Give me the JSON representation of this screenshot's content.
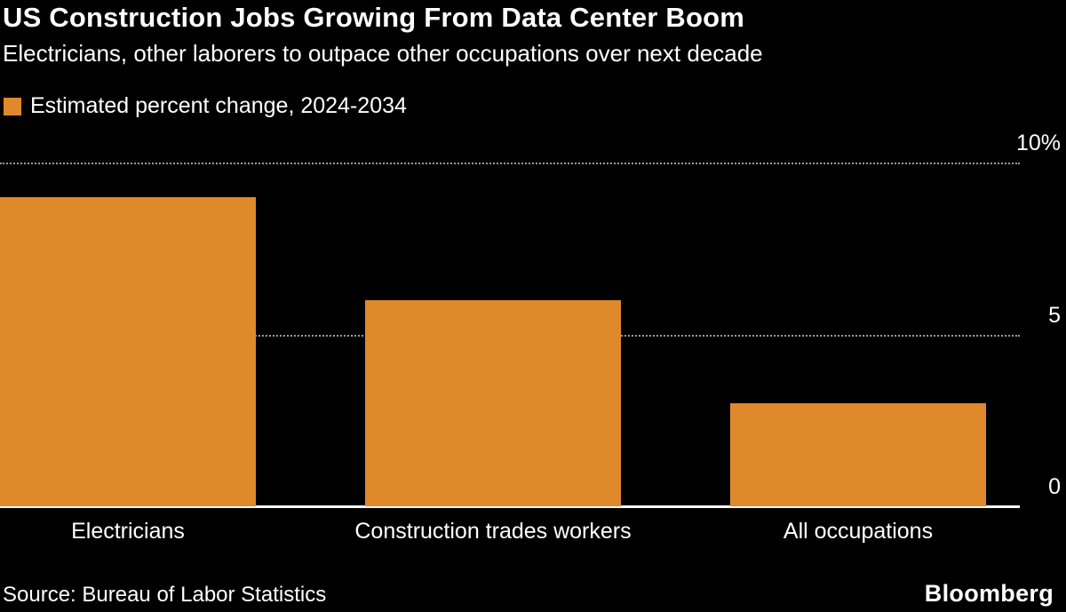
{
  "header": {
    "title": "US Construction Jobs Growing From Data Center Boom",
    "subtitle": "Electricians, other laborers to outpace other occupations over next decade"
  },
  "legend": {
    "label": "Estimated percent change, 2024-2034"
  },
  "footer": {
    "source": "Source: Bureau of Labor Statistics",
    "logo": "Bloomberg"
  },
  "colors": {
    "background": "#000000",
    "bar": "#E0892B",
    "text": "#FFFFFF",
    "gridline": "#9A9A9A",
    "baseline": "#FFFFFF"
  },
  "chart_data": {
    "type": "bar",
    "title": "Estimated percent change, 2024-2034",
    "categories": [
      "Electricians",
      "Construction trades workers",
      "All occupations"
    ],
    "values": [
      9,
      6,
      3
    ],
    "xlabel": "",
    "ylabel": "Estimated percent change, 2024-2034 (%)",
    "ylim": [
      0,
      10
    ],
    "yticks": [
      {
        "value": 10,
        "label": "10%"
      },
      {
        "value": 5,
        "label": "5"
      },
      {
        "value": 0,
        "label": "0"
      }
    ],
    "grid": "dotted horizontal lines at 5 and 10",
    "legend_position": "top-left",
    "bar_color": "#E0892B",
    "background": "#000000"
  }
}
